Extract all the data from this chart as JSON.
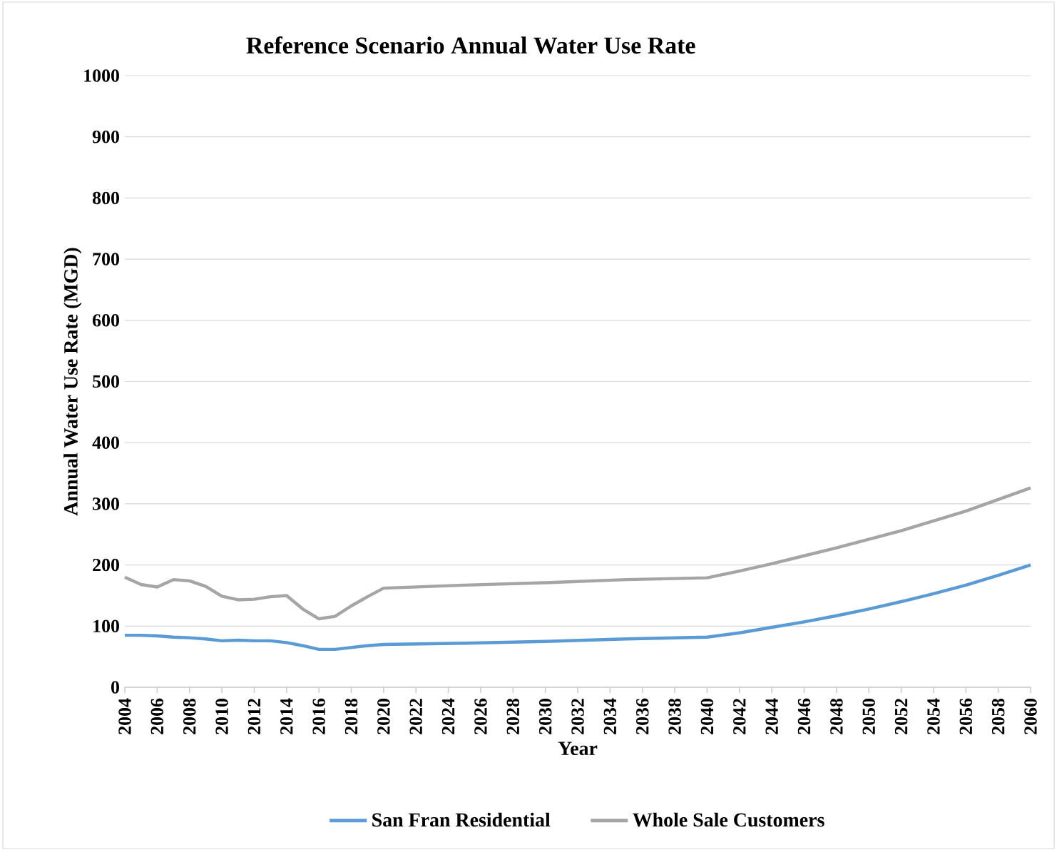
{
  "chart_data": {
    "type": "line",
    "title": "Reference Scenario Annual Water Use Rate",
    "xlabel": "Year",
    "ylabel": "Annual Water Use Rate (MGD)",
    "x": [
      2004,
      2005,
      2006,
      2007,
      2008,
      2009,
      2010,
      2011,
      2012,
      2013,
      2014,
      2015,
      2016,
      2017,
      2018,
      2019,
      2020,
      2025,
      2030,
      2035,
      2040,
      2042,
      2044,
      2046,
      2048,
      2050,
      2052,
      2054,
      2056,
      2058,
      2060
    ],
    "series": [
      {
        "name": "San Fran Residential",
        "color": "#5b9bd5",
        "values": [
          85,
          85,
          84,
          82,
          81,
          79,
          76,
          77,
          76,
          76,
          73,
          68,
          62,
          62,
          65,
          68,
          70,
          72,
          75,
          79,
          82,
          89,
          98,
          107,
          117,
          128,
          140,
          153,
          167,
          183,
          200
        ]
      },
      {
        "name": "Whole Sale Customers",
        "color": "#a5a5a5",
        "values": [
          180,
          168,
          164,
          176,
          174,
          165,
          149,
          143,
          144,
          148,
          150,
          128,
          112,
          116,
          133,
          148,
          162,
          167,
          171,
          176,
          179,
          190,
          202,
          215,
          228,
          242,
          256,
          272,
          288,
          307,
          326
        ]
      }
    ],
    "xlim": [
      2004,
      2060
    ],
    "xticks": [
      2004,
      2006,
      2008,
      2010,
      2012,
      2014,
      2016,
      2018,
      2020,
      2022,
      2024,
      2026,
      2028,
      2030,
      2032,
      2034,
      2036,
      2038,
      2040,
      2042,
      2044,
      2046,
      2048,
      2050,
      2052,
      2054,
      2056,
      2058,
      2060
    ],
    "ylim": [
      0,
      1000
    ],
    "yticks": [
      0,
      100,
      200,
      300,
      400,
      500,
      600,
      700,
      800,
      900,
      1000
    ],
    "grid": "y",
    "legend": "bottom",
    "marker": "none",
    "line_style": "solid"
  }
}
